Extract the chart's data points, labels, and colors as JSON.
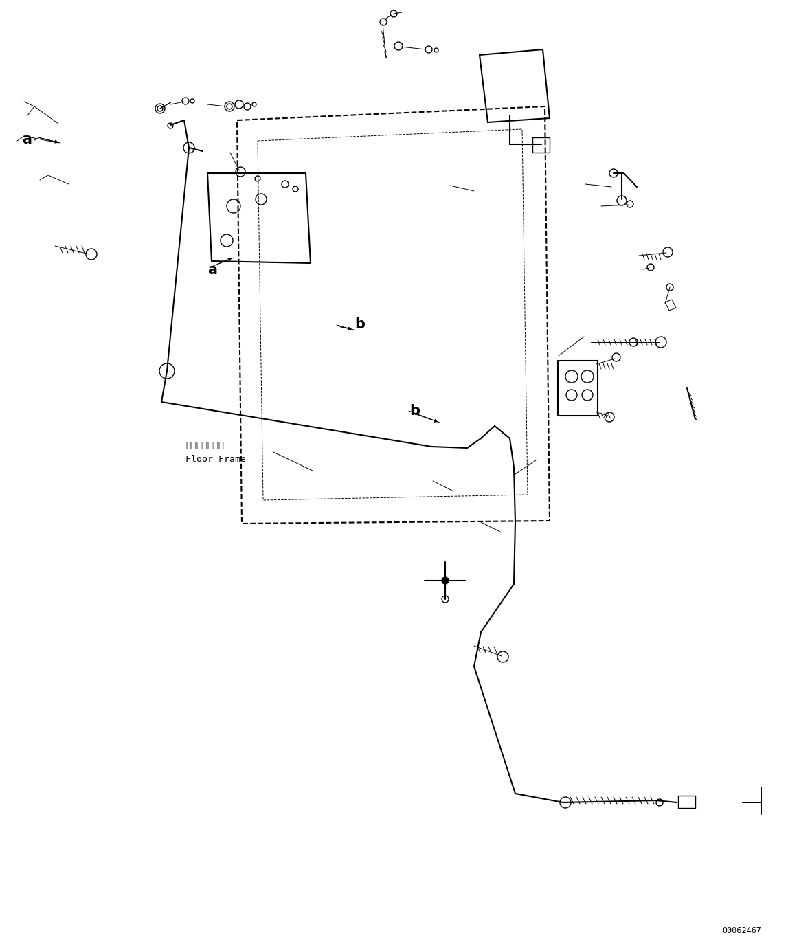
{
  "bg_color": "#ffffff",
  "line_color": "#000000",
  "fig_width": 11.63,
  "fig_height": 13.74,
  "dpi": 100,
  "watermark": "00062467",
  "label_a1": "a",
  "label_a2": "a",
  "label_b1": "b",
  "label_b2": "b",
  "floor_frame_jp": "フロアフレーム",
  "floor_frame_en": "Floor Frame"
}
